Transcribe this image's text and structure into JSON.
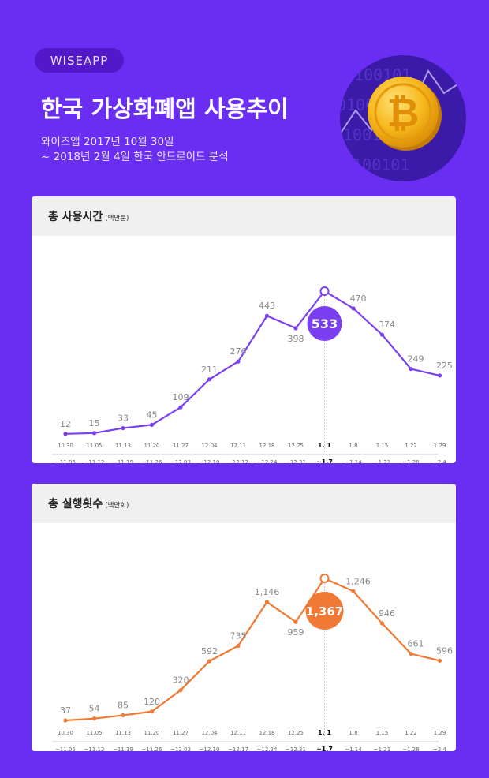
{
  "header": {
    "brand": "WISEAPP",
    "title": "한국 가상화폐앱 사용추이",
    "subtitle_line1": "와이즈앱 2017년 10월 30일",
    "subtitle_line2": "~ 2018년 2월 4일 한국 안드로이드 분석"
  },
  "colors": {
    "background": "#6a2df2",
    "usage_line": "#7b3ff2",
    "runs_line": "#f07a35",
    "card": "#ffffff",
    "card_header": "#f0f0f0"
  },
  "coin_digits": [
    "0100101",
    "010010",
    "1001010",
    "10100101"
  ],
  "chart_data": [
    {
      "type": "line",
      "title": "총 사용시간",
      "unit": "(백만분)",
      "categories": [
        [
          "10.30",
          "~11.05"
        ],
        [
          "11.05",
          "~11.12"
        ],
        [
          "11.13",
          "~11.19"
        ],
        [
          "11.20",
          "~11.26"
        ],
        [
          "11.27",
          "~12.03"
        ],
        [
          "12.04",
          "~12.10"
        ],
        [
          "12.11",
          "~12.17"
        ],
        [
          "12.18",
          "~12.24"
        ],
        [
          "12.25",
          "~12.31"
        ],
        [
          "1. 1",
          "~1.7"
        ],
        [
          "1.8",
          "~1.14"
        ],
        [
          "1.15",
          "~1.21"
        ],
        [
          "1.22",
          "~1.28"
        ],
        [
          "1.29",
          "~2.4"
        ]
      ],
      "values": [
        12,
        15,
        33,
        45,
        109,
        211,
        276,
        443,
        398,
        533,
        470,
        374,
        249,
        225
      ],
      "labels": [
        "12",
        "15",
        "33",
        "45",
        "109",
        "211",
        "276",
        "443",
        "398",
        "533",
        "470",
        "374",
        "249",
        "225"
      ],
      "highlight_index": 9,
      "ylim": [
        0,
        533
      ],
      "color": "#7b3ff2",
      "label_offsets": [
        [
          0,
          -1
        ],
        [
          0,
          -1
        ],
        [
          0,
          -1
        ],
        [
          0,
          -1
        ],
        [
          0,
          -1
        ],
        [
          0,
          -1
        ],
        [
          0,
          -1
        ],
        [
          0,
          -1
        ],
        [
          0,
          1
        ],
        [
          0,
          0
        ],
        [
          1,
          -1
        ],
        [
          1,
          -1
        ],
        [
          1,
          -1
        ],
        [
          1,
          -1
        ]
      ]
    },
    {
      "type": "line",
      "title": "총 실행횟수",
      "unit": "(백만회)",
      "categories": [
        [
          "10.30",
          "~11.05"
        ],
        [
          "11.05",
          "~11.12"
        ],
        [
          "11.13",
          "~11.19"
        ],
        [
          "11.20",
          "~11.26"
        ],
        [
          "11.27",
          "~12.03"
        ],
        [
          "12.04",
          "~12.10"
        ],
        [
          "12.11",
          "~12.17"
        ],
        [
          "12.18",
          "~12.24"
        ],
        [
          "12.25",
          "~12.31"
        ],
        [
          "1. 1",
          "~1.7"
        ],
        [
          "1.8",
          "~1.14"
        ],
        [
          "1.15",
          "~1.21"
        ],
        [
          "1.22",
          "~1.28"
        ],
        [
          "1.29",
          "~2.4"
        ]
      ],
      "values": [
        37,
        54,
        85,
        120,
        320,
        592,
        735,
        1146,
        959,
        1367,
        1246,
        946,
        661,
        596
      ],
      "labels": [
        "37",
        "54",
        "85",
        "120",
        "320",
        "592",
        "735",
        "1,146",
        "959",
        "1,367",
        "1,246",
        "946",
        "661",
        "596"
      ],
      "highlight_index": 9,
      "ylim": [
        0,
        1367
      ],
      "color": "#f07a35",
      "label_offsets": [
        [
          0,
          -1
        ],
        [
          0,
          -1
        ],
        [
          0,
          -1
        ],
        [
          0,
          -1
        ],
        [
          0,
          -1
        ],
        [
          0,
          -1
        ],
        [
          0,
          -1
        ],
        [
          0,
          -1
        ],
        [
          0,
          1
        ],
        [
          0,
          0
        ],
        [
          1,
          -1
        ],
        [
          1,
          -1
        ],
        [
          1,
          -1
        ],
        [
          1,
          -1
        ]
      ]
    }
  ]
}
